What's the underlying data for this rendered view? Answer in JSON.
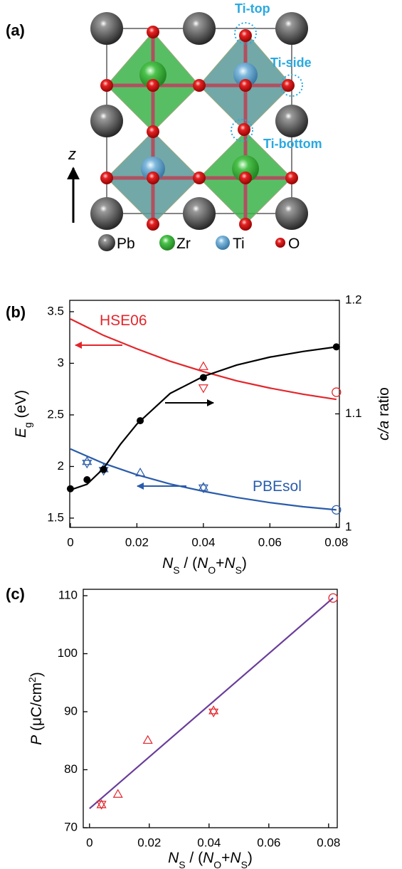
{
  "panel_a": {
    "label": "(a)",
    "annotations": [
      "Ti-top",
      "Ti-side",
      "Ti-bottom"
    ],
    "axis": "z",
    "legend": [
      "Pb",
      "Zr",
      "Ti",
      "O"
    ]
  },
  "chart_data": [
    {
      "type": "scatter",
      "panel_label": "(b)",
      "xlabel": [
        "N",
        "S",
        " / (",
        "N",
        "O",
        "+",
        "N",
        "S",
        ")"
      ],
      "ylabel": [
        "E",
        "g",
        " (eV)"
      ],
      "y2label": [
        "c/a",
        " ratio"
      ],
      "xlim": [
        -0.0002,
        0.0809
      ],
      "xticks": [
        0,
        0.02,
        0.04,
        0.06,
        0.08
      ],
      "ylim": [
        1.41,
        3.61
      ],
      "yticks": [
        1.5,
        2,
        2.5,
        3,
        3.5
      ],
      "y2lim": [
        1,
        1.2
      ],
      "y2ticks": [
        1,
        1.1,
        1.2
      ],
      "series": [
        {
          "name": "HSE06",
          "mode": "line",
          "color": "#e3262b",
          "x": [
            0,
            0.01,
            0.02,
            0.03,
            0.04,
            0.05,
            0.06,
            0.07,
            0.08
          ],
          "values": [
            3.43,
            3.27,
            3.14,
            3.02,
            2.92,
            2.83,
            2.76,
            2.7,
            2.65
          ]
        },
        {
          "mode": "tri-up",
          "color": "#e3262b",
          "x": [
            0.04
          ],
          "values": [
            2.97
          ]
        },
        {
          "mode": "tri-down",
          "color": "#e3262b",
          "x": [
            0.04
          ],
          "values": [
            2.76
          ]
        },
        {
          "mode": "circle",
          "color": "#e3262b",
          "x": [
            0.08
          ],
          "values": [
            2.72
          ]
        },
        {
          "name": "PBEsol",
          "mode": "line",
          "color": "#2a5caa",
          "x": [
            0,
            0.01,
            0.02,
            0.03,
            0.04,
            0.05,
            0.06,
            0.07,
            0.08
          ],
          "values": [
            2.17,
            2.03,
            1.92,
            1.83,
            1.76,
            1.7,
            1.65,
            1.61,
            1.58
          ]
        },
        {
          "mode": "tri-up",
          "color": "#2a5caa",
          "x": [
            0.005,
            0.01,
            0.021,
            0.04
          ],
          "values": [
            2.05,
            1.98,
            1.94,
            1.8
          ]
        },
        {
          "mode": "tri-down",
          "color": "#2a5caa",
          "x": [
            0.005,
            0.01,
            0.04
          ],
          "values": [
            2.03,
            1.96,
            1.79
          ]
        },
        {
          "mode": "circle",
          "color": "#2a5caa",
          "x": [
            0.08
          ],
          "values": [
            1.58
          ]
        },
        {
          "mode": "line",
          "color": "#000000",
          "axis": "y2",
          "x": [
            0,
            0.005,
            0.01,
            0.015,
            0.02,
            0.03,
            0.04,
            0.05,
            0.06,
            0.07,
            0.08
          ],
          "values": [
            1.033,
            1.038,
            1.052,
            1.073,
            1.091,
            1.118,
            1.133,
            1.143,
            1.15,
            1.155,
            1.159
          ]
        },
        {
          "mode": "filled-circle",
          "color": "#000000",
          "axis": "y2",
          "x": [
            0,
            0.005,
            0.01,
            0.021,
            0.04,
            0.08
          ],
          "values": [
            1.034,
            1.042,
            1.051,
            1.094,
            1.132,
            1.159
          ]
        }
      ]
    },
    {
      "type": "scatter",
      "panel_label": "(c)",
      "xlabel": [
        "N",
        "S",
        " / (",
        "N",
        "O",
        "+",
        "N",
        "S",
        ")"
      ],
      "ylabel": [
        "P",
        " (μC/cm",
        "2",
        ")"
      ],
      "xlim": [
        -0.0021,
        0.0829
      ],
      "xticks": [
        0,
        0.02,
        0.04,
        0.06,
        0.08
      ],
      "ylim": [
        70,
        111.1
      ],
      "yticks": [
        70,
        80,
        90,
        100,
        110
      ],
      "series": [
        {
          "mode": "line",
          "color": "#6a3d9a",
          "x": [
            0,
            0.0815
          ],
          "values": [
            73.3,
            109.6
          ]
        },
        {
          "mode": "circle",
          "color": "#e3262b",
          "x": [
            0.0815
          ],
          "values": [
            109.6
          ]
        },
        {
          "mode": "tri-up",
          "color": "#e3262b",
          "x": [
            0.004,
            0.0095,
            0.0195,
            0.0415
          ],
          "values": [
            74,
            75.8,
            85.1,
            90.2
          ]
        },
        {
          "mode": "tri-down",
          "color": "#e3262b",
          "x": [
            0.004,
            0.0415
          ],
          "values": [
            74,
            89.9
          ]
        }
      ]
    }
  ]
}
